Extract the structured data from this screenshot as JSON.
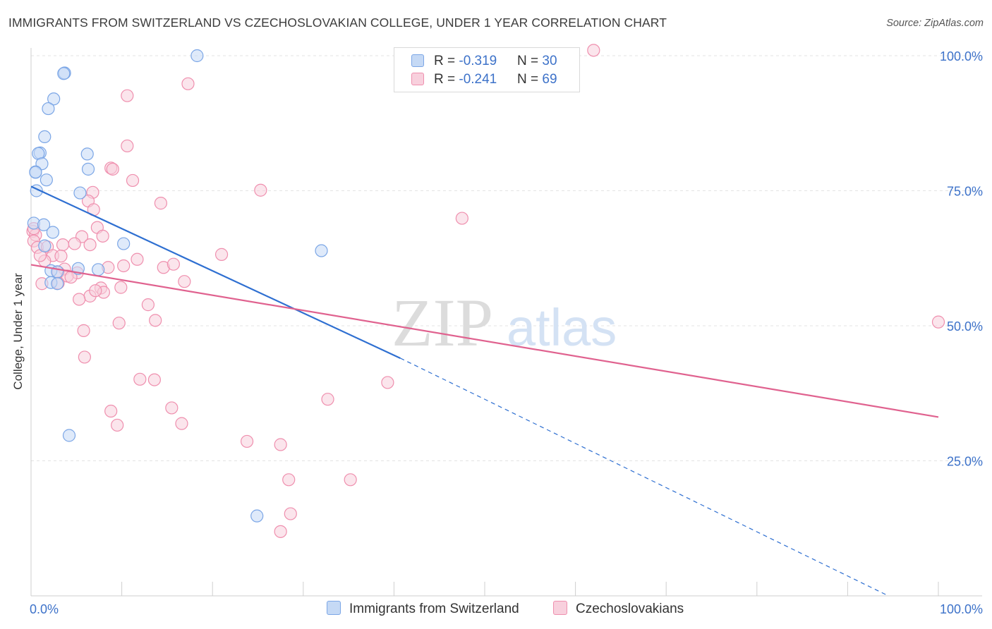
{
  "title": "IMMIGRANTS FROM SWITZERLAND VS CZECHOSLOVAKIAN COLLEGE, UNDER 1 YEAR CORRELATION CHART",
  "source": "Source: ZipAtlas.com",
  "watermark": {
    "zip": "ZIP",
    "atlas": "atlas"
  },
  "legend": {
    "rows": [
      {
        "r_label": "R = ",
        "r_value": "-0.319",
        "n_label": "N = ",
        "n_value": "30"
      },
      {
        "r_label": "R = ",
        "r_value": "-0.241",
        "n_label": "N = ",
        "n_value": "69"
      }
    ]
  },
  "chart_data": {
    "type": "scatter",
    "title": "IMMIGRANTS FROM SWITZERLAND VS CZECHOSLOVAKIAN COLLEGE, UNDER 1 YEAR CORRELATION CHART",
    "xlabel": "",
    "ylabel": "College, Under 1 year",
    "xlim": [
      0,
      100
    ],
    "ylim": [
      0,
      100
    ],
    "x_tick_labels": [
      "0.0%",
      "100.0%"
    ],
    "y_tick_values": [
      25,
      50,
      75,
      100
    ],
    "y_tick_labels": [
      "25.0%",
      "50.0%",
      "75.0%",
      "100.0%"
    ],
    "grid": true,
    "legend_position": "top-center",
    "colors": {
      "blue": "#7ba6e6",
      "blue_fill": "#c5d9f5",
      "pink": "#ef8fae",
      "pink_fill": "#f8d0dd",
      "blue_line": "#2e6fd1",
      "pink_line": "#e0628f"
    },
    "series": [
      {
        "name": "Immigrants from Switzerland",
        "color": "#7ba6e6",
        "r": -0.319,
        "n": 30,
        "points": [
          [
            18.3,
            100.0
          ],
          [
            3.7,
            96.8
          ],
          [
            3.6,
            96.7
          ],
          [
            2.5,
            92.0
          ],
          [
            1.9,
            90.2
          ],
          [
            1.5,
            85.0
          ],
          [
            1.0,
            82.0
          ],
          [
            0.8,
            81.9
          ],
          [
            6.2,
            81.8
          ],
          [
            1.2,
            80.0
          ],
          [
            0.5,
            78.5
          ],
          [
            6.3,
            79.0
          ],
          [
            0.5,
            78.4
          ],
          [
            1.7,
            77.0
          ],
          [
            0.6,
            75.0
          ],
          [
            5.4,
            74.6
          ],
          [
            0.3,
            69.0
          ],
          [
            1.4,
            68.7
          ],
          [
            2.4,
            67.3
          ],
          [
            10.2,
            65.2
          ],
          [
            1.5,
            64.8
          ],
          [
            2.2,
            60.2
          ],
          [
            5.2,
            60.6
          ],
          [
            7.4,
            60.4
          ],
          [
            32.0,
            63.9
          ],
          [
            2.9,
            60.0
          ],
          [
            2.2,
            58.0
          ],
          [
            2.9,
            57.8
          ],
          [
            4.2,
            29.7
          ],
          [
            24.9,
            14.8
          ]
        ]
      },
      {
        "name": "Czechoslovakians",
        "color": "#ef8fae",
        "r": -0.241,
        "n": 69,
        "points": [
          [
            17.3,
            94.8
          ],
          [
            10.6,
            92.6
          ],
          [
            10.6,
            83.3
          ],
          [
            8.8,
            79.2
          ],
          [
            9.0,
            79.0
          ],
          [
            11.2,
            76.9
          ],
          [
            25.3,
            75.1
          ],
          [
            6.8,
            74.7
          ],
          [
            14.3,
            72.7
          ],
          [
            6.3,
            73.1
          ],
          [
            6.9,
            71.5
          ],
          [
            0.2,
            67.5
          ],
          [
            0.5,
            66.8
          ],
          [
            0.3,
            65.7
          ],
          [
            7.3,
            68.2
          ],
          [
            7.9,
            66.6
          ],
          [
            5.6,
            66.5
          ],
          [
            0.7,
            64.5
          ],
          [
            1.8,
            64.6
          ],
          [
            3.5,
            65.0
          ],
          [
            4.8,
            65.2
          ],
          [
            6.5,
            65.0
          ],
          [
            21.0,
            63.2
          ],
          [
            2.4,
            63.0
          ],
          [
            3.3,
            62.9
          ],
          [
            11.7,
            62.3
          ],
          [
            1.5,
            62.0
          ],
          [
            3.7,
            60.5
          ],
          [
            3.0,
            59.9
          ],
          [
            5.1,
            59.8
          ],
          [
            8.5,
            60.8
          ],
          [
            10.2,
            61.1
          ],
          [
            14.6,
            60.8
          ],
          [
            15.7,
            61.4
          ],
          [
            4.0,
            59.2
          ],
          [
            4.4,
            59.0
          ],
          [
            1.2,
            57.8
          ],
          [
            3.0,
            57.9
          ],
          [
            16.9,
            58.2
          ],
          [
            7.7,
            57.0
          ],
          [
            8.0,
            56.2
          ],
          [
            9.9,
            57.1
          ],
          [
            6.5,
            55.5
          ],
          [
            7.1,
            56.5
          ],
          [
            5.3,
            54.9
          ],
          [
            12.9,
            53.9
          ],
          [
            13.7,
            51.0
          ],
          [
            9.7,
            50.5
          ],
          [
            5.8,
            49.1
          ],
          [
            5.9,
            44.2
          ],
          [
            12.0,
            40.1
          ],
          [
            13.6,
            40.0
          ],
          [
            39.3,
            39.5
          ],
          [
            32.7,
            36.4
          ],
          [
            8.8,
            34.2
          ],
          [
            15.5,
            34.8
          ],
          [
            9.5,
            31.6
          ],
          [
            16.6,
            31.9
          ],
          [
            23.8,
            28.6
          ],
          [
            27.5,
            28.0
          ],
          [
            28.4,
            21.5
          ],
          [
            35.2,
            21.5
          ],
          [
            28.6,
            15.2
          ],
          [
            27.5,
            11.9
          ],
          [
            47.5,
            69.9
          ],
          [
            100.0,
            50.7
          ],
          [
            62.0,
            101.0
          ],
          [
            0.3,
            68.0
          ],
          [
            1.0,
            63.0
          ]
        ]
      }
    ],
    "trend_lines": [
      {
        "series": "Immigrants from Switzerland",
        "x0": 0,
        "y0": 75.8,
        "x1": 40.7,
        "y1": 44.0,
        "dashed_to_x": 94.5,
        "dashed_to_y": 0
      },
      {
        "series": "Czechoslovakians",
        "x0": 0,
        "y0": 61.3,
        "x1": 100,
        "y1": 33.1
      }
    ]
  }
}
